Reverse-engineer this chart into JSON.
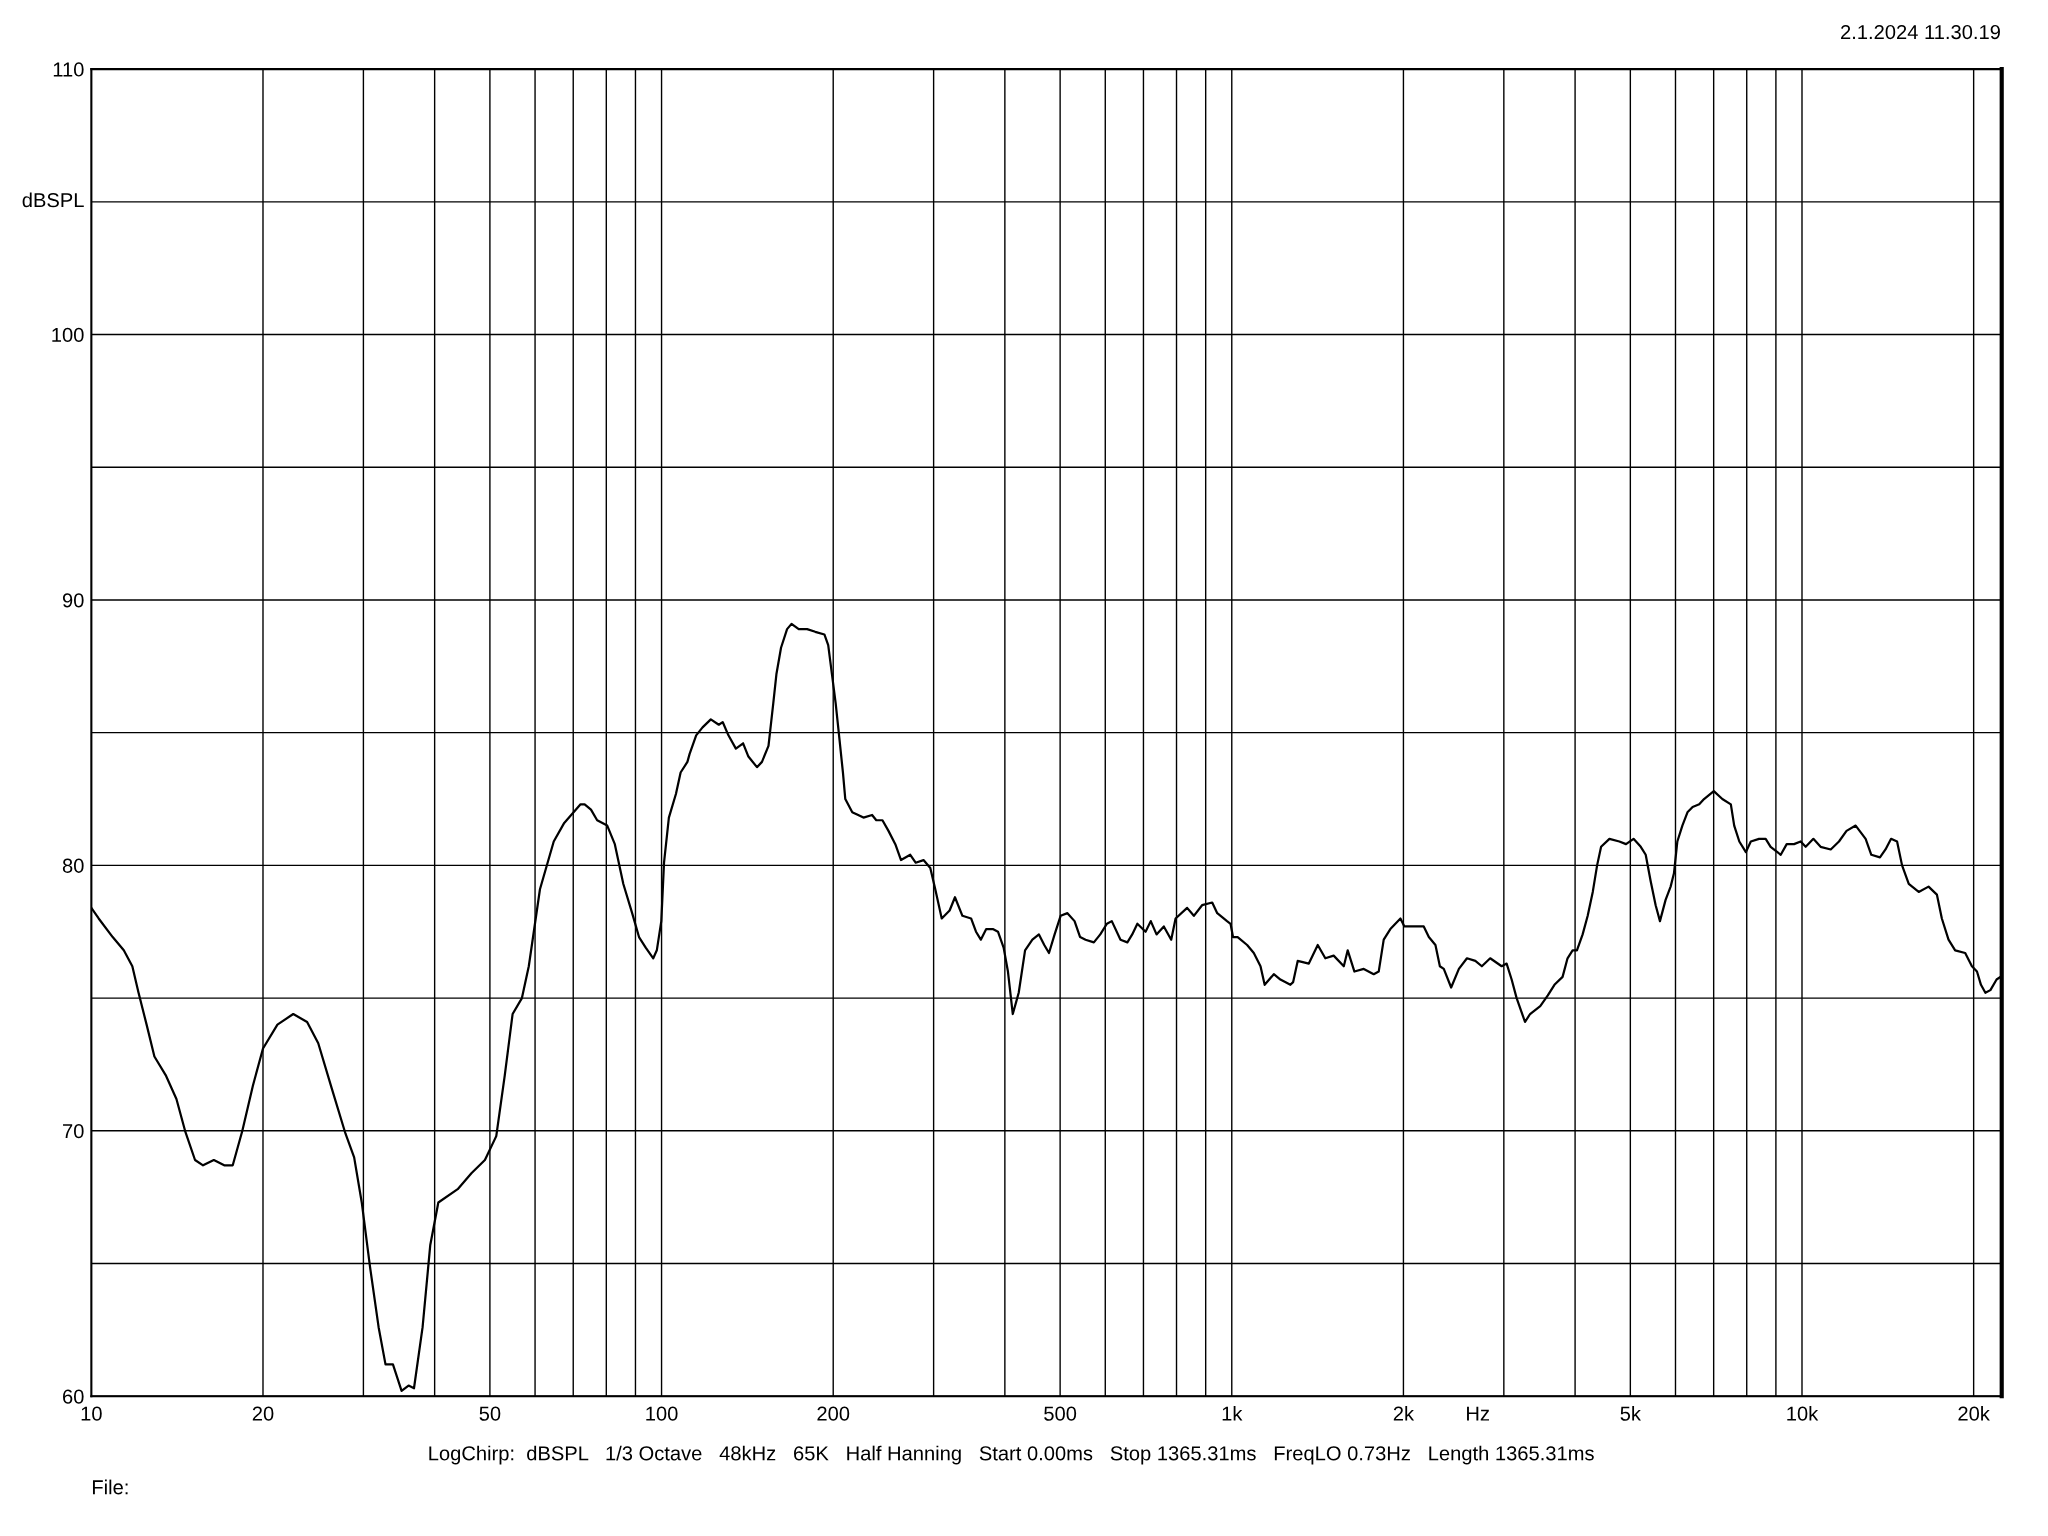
{
  "chart_data": {
    "type": "line",
    "x": [
      10,
      10.3,
      10.9,
      11.4,
      11.8,
      12.1,
      12.5,
      12.9,
      13.5,
      14.1,
      14.6,
      15.2,
      15.7,
      16.4,
      17.1,
      17.7,
      18.4,
      19.2,
      20.0,
      21.2,
      22.6,
      23.9,
      25.0,
      26.4,
      27.9,
      28.9,
      29.8,
      30.8,
      31.9,
      32.8,
      33.8,
      35.0,
      36.0,
      36.8,
      38.1,
      39.3,
      40.6,
      43.9,
      46.4,
      49.0,
      51.3,
      53.1,
      54.8,
      56.9,
      58.5,
      61.2,
      64.7,
      67.5,
      72.1,
      73.3,
      75.2,
      77.1,
      80.3,
      82.8,
      85.7,
      88.8,
      91.3,
      93.8,
      96.7,
      98.1,
      99.9,
      101,
      103,
      106,
      108,
      111,
      112,
      115,
      118,
      122,
      126,
      128,
      131,
      135,
      139,
      142,
      147,
      150,
      154,
      157,
      159,
      162,
      166,
      169,
      174,
      180,
      186,
      193,
      196,
      199,
      202,
      205,
      208,
      210,
      216,
      226,
      234,
      238,
      244,
      250,
      257,
      263,
      273,
      279,
      288,
      296,
      302,
      310,
      320,
      327,
      337,
      349,
      356,
      363,
      371,
      381,
      389,
      398,
      405,
      413,
      423,
      434,
      447,
      459,
      469,
      478,
      489,
      501,
      515,
      530,
      542,
      554,
      573,
      588,
      604,
      616,
      638,
      656,
      669,
      683,
      706,
      721,
      738,
      760,
      783,
      797,
      835,
      858,
      887,
      924,
      943,
      981,
      995,
      1005,
      1024,
      1064,
      1093,
      1123,
      1142,
      1185,
      1217,
      1267,
      1281,
      1305,
      1365,
      1415,
      1459,
      1509,
      1572,
      1597,
      1641,
      1704,
      1774,
      1810,
      1847,
      1897,
      1976,
      2008,
      2086,
      2171,
      2216,
      2276,
      2317,
      2354,
      2425,
      2502,
      2585,
      2674,
      2745,
      2839,
      2974,
      3034,
      3096,
      3159,
      3268,
      3335,
      3475,
      3583,
      3680,
      3803,
      3880,
      3960,
      4030,
      4124,
      4209,
      4296,
      4372,
      4443,
      4595,
      4783,
      4913,
      5065,
      5215,
      5320,
      5428,
      5538,
      5635,
      5765,
      5883,
      5963,
      6045,
      6169,
      6297,
      6429,
      6604,
      6733,
      7004,
      7249,
      7503,
      7605,
      7764,
      7972,
      8133,
      8408,
      8636,
      8810,
      9178,
      9401,
      9683,
      9946,
      10150,
      10470,
      10780,
      11230,
      11610,
      11970,
      12420,
      12930,
      13230,
      13700,
      14010,
      14330,
      14680,
      14980,
      15390,
      16020,
      16670,
      17240,
      17590,
      18070,
      18560,
      19330,
      19860,
      20270,
      20600,
      20970,
      21400,
      21940,
      22300
    ],
    "series": [
      {
        "color": "#000000",
        "values": [
          78.4,
          78.0,
          77.3,
          76.8,
          76.2,
          75.2,
          74.0,
          72.8,
          72.1,
          71.2,
          70.0,
          68.9,
          68.7,
          68.9,
          68.7,
          68.7,
          70.0,
          71.7,
          73.1,
          74.0,
          74.4,
          74.1,
          73.3,
          71.6,
          69.9,
          69.0,
          67.3,
          64.9,
          62.6,
          61.2,
          61.2,
          60.2,
          60.4,
          60.3,
          62.6,
          65.7,
          67.3,
          67.8,
          68.4,
          68.9,
          69.8,
          72.1,
          74.4,
          75.0,
          76.2,
          79.1,
          80.9,
          81.6,
          82.3,
          82.3,
          82.1,
          81.7,
          81.5,
          80.8,
          79.3,
          78.2,
          77.3,
          76.9,
          76.5,
          76.8,
          77.9,
          80.1,
          81.8,
          82.7,
          83.5,
          83.9,
          84.2,
          84.9,
          85.2,
          85.5,
          85.3,
          85.4,
          84.9,
          84.4,
          84.6,
          84.1,
          83.7,
          83.9,
          84.5,
          86.1,
          87.2,
          88.2,
          88.9,
          89.1,
          88.9,
          88.9,
          88.8,
          88.7,
          88.3,
          87.2,
          86.1,
          84.8,
          83.5,
          82.5,
          82.0,
          81.8,
          81.9,
          81.7,
          81.7,
          81.3,
          80.8,
          80.2,
          80.4,
          80.1,
          80.2,
          79.9,
          79.1,
          78.0,
          78.3,
          78.8,
          78.1,
          78.0,
          77.5,
          77.2,
          77.6,
          77.6,
          77.5,
          76.9,
          76.0,
          74.4,
          75.2,
          76.8,
          77.2,
          77.4,
          77.0,
          76.7,
          77.4,
          78.1,
          78.2,
          77.9,
          77.3,
          77.2,
          77.1,
          77.4,
          77.8,
          77.9,
          77.2,
          77.1,
          77.4,
          77.8,
          77.5,
          77.9,
          77.4,
          77.7,
          77.2,
          78.0,
          78.4,
          78.1,
          78.5,
          78.6,
          78.2,
          77.9,
          77.8,
          77.3,
          77.3,
          77.0,
          76.7,
          76.2,
          75.5,
          75.9,
          75.7,
          75.5,
          75.6,
          76.4,
          76.3,
          77.0,
          76.5,
          76.6,
          76.2,
          76.8,
          76.0,
          76.1,
          75.9,
          76.0,
          77.2,
          77.6,
          78.0,
          77.7,
          77.7,
          77.7,
          77.3,
          77.0,
          76.2,
          76.1,
          75.4,
          76.1,
          76.5,
          76.4,
          76.2,
          76.5,
          76.2,
          76.3,
          75.7,
          75.0,
          74.1,
          74.4,
          74.7,
          75.1,
          75.5,
          75.8,
          76.5,
          76.8,
          76.8,
          77.4,
          78.1,
          79.0,
          80.0,
          80.7,
          81.0,
          80.9,
          80.8,
          81.0,
          80.7,
          80.4,
          79.4,
          78.5,
          77.9,
          78.7,
          79.2,
          79.7,
          80.9,
          81.5,
          82.0,
          82.2,
          82.3,
          82.5,
          82.8,
          82.5,
          82.3,
          81.5,
          80.9,
          80.5,
          80.9,
          81.0,
          81.0,
          80.7,
          80.4,
          80.8,
          80.8,
          80.9,
          80.7,
          81.0,
          80.7,
          80.6,
          80.9,
          81.3,
          81.5,
          81.0,
          80.4,
          80.3,
          80.6,
          81.0,
          80.9,
          80.0,
          79.3,
          79.0,
          79.2,
          78.9,
          78.0,
          77.2,
          76.8,
          76.7,
          76.2,
          76.0,
          75.5,
          75.2,
          75.3,
          75.7,
          75.8
        ]
      }
    ],
    "xlabel": "Hz",
    "ylabel": "dBSPL",
    "annotations": [
      "2.1.2024 11.30.19",
      "LogChirp:  dBSPL   1/3 Octave   48kHz   65K   Half Hanning   Start 0.00ms   Stop 1365.31ms   FreqLO 0.73Hz   Length 1365.31ms",
      "File:"
    ],
    "log": "x",
    "xlim": [
      10,
      22400
    ],
    "ylim": [
      60,
      110
    ],
    "xticks": [
      10,
      20,
      {
        "value": 30,
        "label": null
      },
      {
        "value": 40,
        "label": null
      },
      50,
      {
        "value": 60,
        "label": null
      },
      {
        "value": 70,
        "label": null
      },
      {
        "value": 80,
        "label": null
      },
      {
        "value": 90,
        "label": null
      },
      100,
      200,
      {
        "value": 300,
        "label": null
      },
      {
        "value": 400,
        "label": null
      },
      500,
      {
        "value": 600,
        "label": null
      },
      {
        "value": 700,
        "label": null
      },
      {
        "value": 800,
        "label": null
      },
      {
        "value": 900,
        "label": null
      },
      {
        "value": 1000,
        "label": "1k"
      },
      {
        "value": 2000,
        "label": "2k"
      },
      {
        "value": 3000,
        "label": null
      },
      {
        "value": 4000,
        "label": null
      },
      {
        "value": 5000,
        "label": "5k"
      },
      {
        "value": 6000,
        "label": null
      },
      {
        "value": 7000,
        "label": null
      },
      {
        "value": 8000,
        "label": null
      },
      {
        "value": 9000,
        "label": null
      },
      {
        "value": 10000,
        "label": "10k"
      },
      {
        "value": 20000,
        "label": "20k"
      }
    ],
    "yticks": [
      60,
      {
        "value": 65,
        "label": null
      },
      70,
      {
        "value": 75,
        "label": null
      },
      80,
      {
        "value": 85,
        "label": null
      },
      90,
      {
        "value": 95,
        "label": null
      },
      100,
      {
        "value": 105,
        "label": null
      },
      110
    ],
    "grid": true,
    "line_style": "solid"
  }
}
